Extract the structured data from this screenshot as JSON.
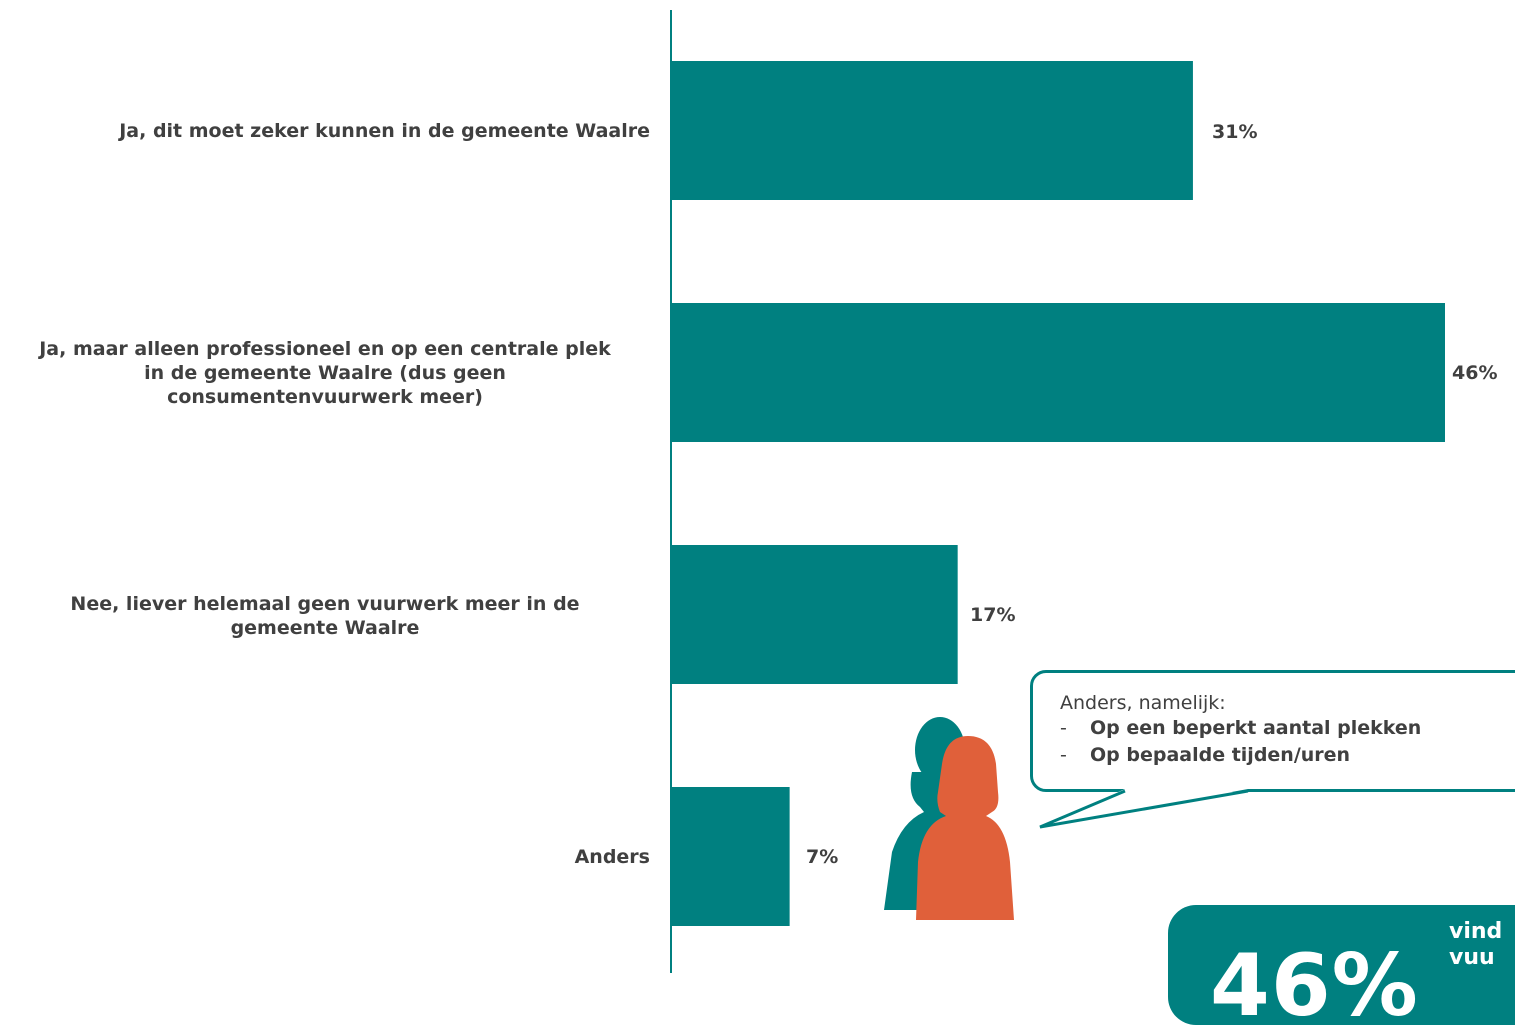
{
  "chart_data": {
    "type": "bar",
    "orientation": "horizontal",
    "categories": [
      "Ja, dit moet zeker kunnen in de gemeente Waalre",
      "Ja, maar alleen professioneel en op een centrale plek in de gemeente Waalre (dus geen consumentenvuurwerk meer)",
      "Nee, liever helemaal geen vuurwerk meer in de gemeente Waalre",
      "Anders"
    ],
    "values": [
      31,
      46,
      17,
      7
    ],
    "value_labels": [
      "31%",
      "46%",
      "17%",
      "7%"
    ],
    "unit": "%",
    "bar_color": "#008080",
    "xlim": [
      0,
      46
    ]
  },
  "labels": {
    "cat0": "Ja, dit moet zeker kunnen in de gemeente Waalre",
    "cat1_line1": "Ja, maar alleen professioneel en op een centrale plek",
    "cat1_line2": "in de gemeente Waalre (dus geen",
    "cat1_line3": "consumentenvuurwerk meer)",
    "cat2_line1": "Nee, liever helemaal geen vuurwerk meer in de",
    "cat2_line2": "gemeente Waalre",
    "cat3": "Anders"
  },
  "callout": {
    "title": "Anders, namelijk:",
    "dash": "-",
    "items": [
      "Op een beperkt aantal plekken",
      "Op bepaalde tijden/uren"
    ],
    "border_color": "#008080"
  },
  "icons": {
    "people": "people-icon"
  },
  "colors": {
    "teal": "#008080",
    "orange": "#e0603a",
    "text": "#404040"
  },
  "highlight": {
    "value": "46%",
    "text_line1": "vind",
    "text_line2": "vuu"
  }
}
